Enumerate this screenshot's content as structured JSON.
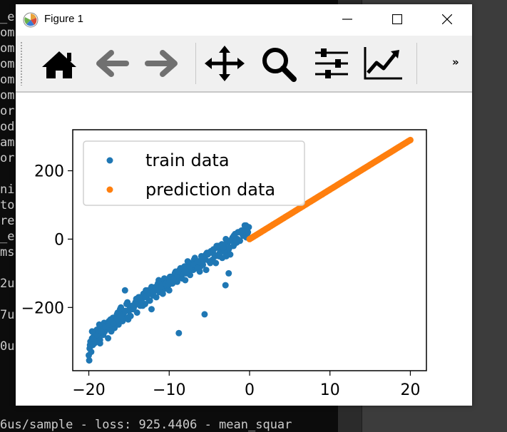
{
  "terminal": {
    "lines": [
      "_e",
      "om",
      "om",
      "om",
      "om",
      "om",
      "or",
      "od",
      "am",
      "or",
      "",
      "ni",
      "to",
      "re",
      "_e",
      "ms",
      "",
      "2u",
      "",
      "7u",
      "",
      "0u"
    ],
    "bottom_line": "6us/sample - loss: 925.4406 - mean_squar"
  },
  "window": {
    "title": "Figure 1",
    "toolbar": {
      "home": "home-icon",
      "back": "back-arrow-icon",
      "forward": "forward-arrow-icon",
      "pan": "pan-icon",
      "zoom": "zoom-icon",
      "subplots": "subplots-config-icon",
      "edit": "edit-axis-icon",
      "overflow_label": "»"
    }
  },
  "chart_data": {
    "type": "scatter",
    "x_range": [
      -22,
      22
    ],
    "y_range": [
      -385,
      320
    ],
    "x_ticks": [
      -20,
      -10,
      0,
      10,
      20
    ],
    "x_tick_labels": [
      "−20",
      "−10",
      "0",
      "10",
      "20"
    ],
    "y_ticks": [
      -200,
      0,
      200
    ],
    "y_tick_labels": [
      "−200",
      "0",
      "200"
    ],
    "legend_position": "upper-left",
    "grid": false,
    "series": [
      {
        "name": "train data",
        "color": "#1f77b4",
        "x": [
          -20.0,
          -19.9,
          -19.8,
          -19.6,
          -19.5,
          -19.4,
          -19.2,
          -19.1,
          -19.0,
          -18.8,
          -18.7,
          -18.5,
          -18.4,
          -18.2,
          -18.1,
          -18.0,
          -17.8,
          -17.6,
          -17.5,
          -17.3,
          -17.1,
          -17.0,
          -16.8,
          -16.6,
          -16.5,
          -16.3,
          -16.1,
          -16.0,
          -15.8,
          -15.6,
          -15.4,
          -15.2,
          -15.0,
          -14.8,
          -14.6,
          -14.4,
          -14.2,
          -14.0,
          -13.8,
          -13.6,
          -13.4,
          -13.2,
          -13.0,
          -12.8,
          -12.6,
          -12.4,
          -12.2,
          -12.0,
          -11.8,
          -11.6,
          -11.4,
          -11.2,
          -11.0,
          -10.8,
          -10.6,
          -10.4,
          -10.2,
          -10.0,
          -9.8,
          -9.6,
          -9.4,
          -9.2,
          -9.0,
          -8.8,
          -8.6,
          -8.4,
          -8.2,
          -8.0,
          -7.8,
          -7.6,
          -7.4,
          -7.2,
          -7.0,
          -6.8,
          -6.6,
          -6.4,
          -6.2,
          -6.0,
          -5.8,
          -5.6,
          -5.4,
          -5.2,
          -5.0,
          -4.8,
          -4.6,
          -4.4,
          -4.2,
          -4.0,
          -3.8,
          -3.6,
          -3.4,
          -3.2,
          -3.0,
          -2.8,
          -2.6,
          -2.4,
          -2.2,
          -2.0,
          -1.8,
          -1.6,
          -1.4,
          -1.2,
          -1.0,
          -0.8,
          -0.6,
          -0.4,
          -0.2,
          -0.1,
          -19.7,
          -19.3,
          -18.9,
          -18.3,
          -17.7,
          -17.2,
          -16.7,
          -16.2,
          -15.7,
          -15.1,
          -14.5,
          -13.9,
          -13.3,
          -12.7,
          -12.1,
          -11.5,
          -10.9,
          -10.3,
          -9.7,
          -9.1,
          -8.5,
          -7.9,
          -7.3,
          -6.7,
          -6.1,
          -5.5,
          -4.9,
          -4.3,
          -3.7,
          -3.1,
          -2.5,
          -1.9,
          -1.3,
          -0.7,
          -0.3,
          -19.95,
          -19.1,
          -18.6,
          -17.9,
          -17.4,
          -16.9,
          -16.4,
          -15.9,
          -15.3,
          -14.7,
          -14.1,
          -13.5,
          -12.9,
          -12.3,
          -11.7,
          -11.1,
          -10.5,
          -9.9,
          -9.3,
          -8.7,
          -8.1,
          -7.5,
          -6.9,
          -6.3,
          -5.7,
          -5.1,
          -4.5,
          -3.9,
          -3.3,
          -2.7,
          -2.1,
          -1.5,
          -0.9,
          -0.5,
          -19.85,
          -19.45,
          -18.95,
          -18.45,
          -17.95,
          -17.45,
          -16.95,
          -16.45,
          -15.95,
          -15.45,
          -14.95,
          -14.45,
          -13.95,
          -13.45,
          -12.95,
          -12.45,
          -11.95,
          -11.45,
          -10.95,
          -10.45,
          -9.95,
          -9.45,
          -8.95,
          -8.45,
          -7.95,
          -7.45,
          -6.95,
          -6.45,
          -5.95,
          -5.45,
          -4.95,
          -4.45,
          -3.95,
          -3.45,
          -2.95,
          -2.45,
          -1.95,
          -1.45,
          -0.95,
          -0.45,
          -19.6,
          -18.6,
          -17.3,
          -16.1,
          -14.9,
          -13.7,
          -12.5,
          -11.3,
          -10.1,
          -8.9,
          -7.7,
          -6.5,
          -5.3,
          -4.1,
          -2.9,
          -1.7,
          -0.6,
          -15.5,
          -12.2,
          -8.8,
          -5.6,
          -2.6,
          -3.0
        ],
        "y": [
          -340,
          -320,
          -300,
          -290,
          -310,
          -285,
          -270,
          -295,
          -265,
          -300,
          -250,
          -275,
          -260,
          -280,
          -245,
          -270,
          -255,
          -290,
          -240,
          -265,
          -250,
          -230,
          -260,
          -235,
          -220,
          -250,
          -230,
          -200,
          -240,
          -215,
          -230,
          -185,
          -210,
          -225,
          -195,
          -200,
          -185,
          -215,
          -170,
          -195,
          -175,
          -160,
          -190,
          -165,
          -150,
          -180,
          -140,
          -165,
          -150,
          -170,
          -130,
          -155,
          -140,
          -160,
          -115,
          -145,
          -125,
          -150,
          -110,
          -130,
          -120,
          -95,
          -125,
          -105,
          -85,
          -115,
          -100,
          -120,
          -80,
          -95,
          -105,
          -70,
          -90,
          -55,
          -85,
          -70,
          -95,
          -50,
          -75,
          -60,
          -90,
          -45,
          -65,
          -35,
          -60,
          -45,
          -70,
          -25,
          -50,
          -35,
          -55,
          -20,
          -40,
          -10,
          -30,
          -45,
          0,
          -20,
          15,
          -10,
          20,
          -5,
          25,
          10,
          30,
          5,
          20,
          35,
          -330,
          -305,
          -285,
          -265,
          -250,
          -270,
          -240,
          -225,
          -210,
          -235,
          -205,
          -180,
          -195,
          -165,
          -155,
          -145,
          -150,
          -130,
          -120,
          -115,
          -95,
          -100,
          -85,
          -75,
          -80,
          -60,
          -70,
          -50,
          -40,
          -35,
          -25,
          -15,
          -5,
          10,
          15,
          -355,
          -275,
          -295,
          -255,
          -260,
          -245,
          -215,
          -220,
          -190,
          -200,
          -175,
          -185,
          -150,
          -160,
          -140,
          -125,
          -135,
          -110,
          -100,
          -90,
          -80,
          -85,
          -60,
          -65,
          -55,
          -40,
          -30,
          -20,
          -25,
          -10,
          5,
          0,
          15,
          30,
          -310,
          -290,
          -280,
          -270,
          -255,
          -250,
          -245,
          -235,
          -225,
          -210,
          -205,
          -195,
          -190,
          -180,
          -170,
          -160,
          -155,
          -150,
          -140,
          -130,
          -120,
          -115,
          -105,
          -100,
          -90,
          -80,
          -75,
          -65,
          -55,
          -45,
          -40,
          -30,
          -20,
          -15,
          0,
          -5,
          10,
          20,
          25,
          40,
          -270,
          -305,
          -235,
          -205,
          -225,
          -170,
          -180,
          -120,
          -135,
          -95,
          -65,
          -85,
          -40,
          -20,
          -50,
          -5,
          40,
          -150,
          -205,
          -275,
          -220,
          -100,
          -135
        ],
        "marker_size": 4.5
      },
      {
        "name": "prediction data",
        "color": "#ff7f0e",
        "x_start": 0,
        "x_end": 20,
        "y_start": 0,
        "y_end": 290,
        "marker_size": 4.5
      }
    ]
  }
}
